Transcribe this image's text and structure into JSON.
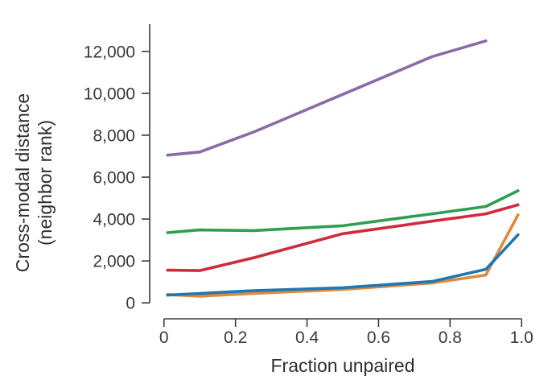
{
  "chart_data": {
    "type": "line",
    "title": "",
    "xlabel": "Fraction unpaired",
    "ylabel": [
      "Cross-modal distance",
      "(neighbor rank)"
    ],
    "xlim": [
      -0.04,
      1.04
    ],
    "ylim": [
      -300,
      13300
    ],
    "x_ticks": [
      0,
      0.2,
      0.4,
      0.6,
      0.8,
      1.0
    ],
    "x_tick_labels": [
      "0",
      "0.2",
      "0.4",
      "0.6",
      "0.8",
      "1.0"
    ],
    "y_ticks": [
      0,
      2000,
      4000,
      6000,
      8000,
      10000,
      12000
    ],
    "y_tick_labels": [
      "0",
      "2,000",
      "4,000",
      "6,000",
      "8,000",
      "10,000",
      "12,000"
    ],
    "grid": false,
    "legend": "none",
    "series": [
      {
        "name": "purple",
        "color": "#8a6aa8",
        "x": [
          0.01,
          0.1,
          0.25,
          0.5,
          0.75,
          0.9
        ],
        "values": [
          7050,
          7200,
          8150,
          9950,
          11750,
          12500
        ]
      },
      {
        "name": "green",
        "color": "#2e9e4f",
        "x": [
          0.01,
          0.1,
          0.25,
          0.5,
          0.75,
          0.9,
          0.99
        ],
        "values": [
          3350,
          3480,
          3450,
          3680,
          4250,
          4600,
          5350
        ]
      },
      {
        "name": "red",
        "color": "#d02b3c",
        "x": [
          0.01,
          0.1,
          0.25,
          0.5,
          0.75,
          0.9,
          0.99
        ],
        "values": [
          1560,
          1540,
          2150,
          3300,
          3900,
          4250,
          4680
        ]
      },
      {
        "name": "orange",
        "color": "#e0893a",
        "x": [
          0.01,
          0.1,
          0.25,
          0.5,
          0.75,
          0.9,
          0.99
        ],
        "values": [
          400,
          320,
          450,
          640,
          950,
          1330,
          4200
        ]
      },
      {
        "name": "blue",
        "color": "#1f77b4",
        "x": [
          0.01,
          0.1,
          0.25,
          0.5,
          0.75,
          0.9,
          0.99
        ],
        "values": [
          370,
          450,
          580,
          720,
          1020,
          1600,
          3250
        ]
      }
    ]
  }
}
